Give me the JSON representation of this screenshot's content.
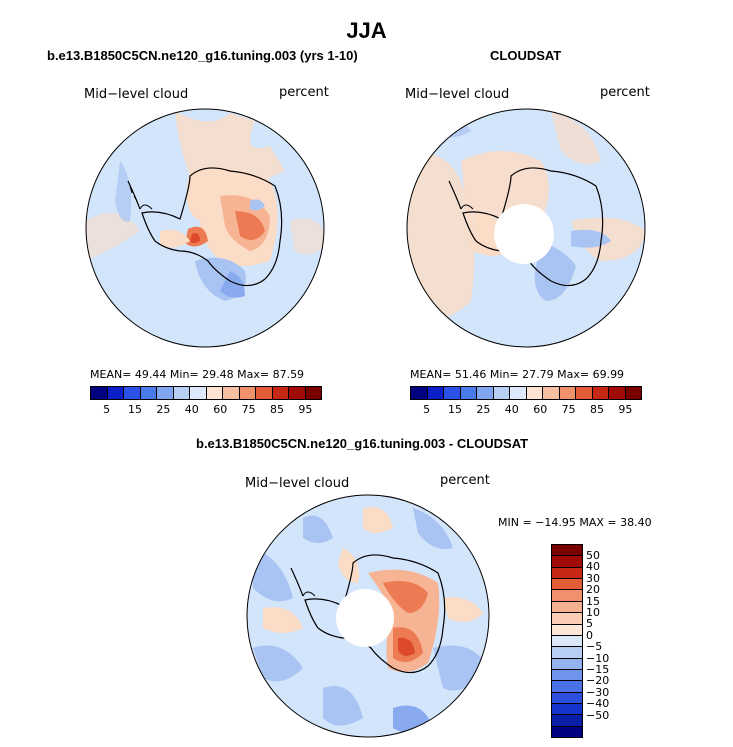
{
  "season": "JJA",
  "panels": [
    {
      "title": "b.e13.B1850C5CN.ne120_g16.tuning.003 (yrs 1-10)",
      "variable": "Mid−level cloud",
      "units": "percent",
      "stats": "MEAN=   49.44   Min=   29.48   Max=   87.59"
    },
    {
      "title": "CLOUDSAT",
      "variable": "Mid−level cloud",
      "units": "percent",
      "stats": "MEAN=   51.46   Min=   27.79   Max=   69.99"
    }
  ],
  "diff_panel": {
    "title": "b.e13.B1850C5CN.ne120_g16.tuning.003 - CLOUDSAT",
    "variable": "Mid−level cloud",
    "units": "percent",
    "stats": "MIN = −14.95 MAX =   38.40"
  },
  "scale": {
    "colors": [
      "#000080",
      "#0a1fc8",
      "#2a52e6",
      "#4a7bea",
      "#7fa6ef",
      "#b8cff5",
      "#dde9fb",
      "#fde3d1",
      "#f7bfa1",
      "#f1916b",
      "#e25c36",
      "#c72815",
      "#a10a07",
      "#7a0000"
    ],
    "labels": [
      "5",
      "15",
      "25",
      "40",
      "60",
      "75",
      "85",
      "95"
    ]
  },
  "diff_scale": {
    "colors": [
      "#7a0000",
      "#a10a07",
      "#c72815",
      "#e25c36",
      "#f1916b",
      "#f7b08f",
      "#fbcdb5",
      "#fde7d8",
      "#dde9fb",
      "#b8cff5",
      "#92b2f0",
      "#6f94ec",
      "#4a72e8",
      "#2c4fe0",
      "#1434cc",
      "#0a1fa8",
      "#000080"
    ],
    "labels": [
      "50",
      "40",
      "30",
      "20",
      "15",
      "10",
      "5",
      "0",
      "−5",
      "−10",
      "−15",
      "−20",
      "−30",
      "−40",
      "−50"
    ]
  },
  "map_colors": {
    "ocean": "#d3e5fb",
    "warm": "#fbdcc6",
    "warm2": "#f6b494",
    "hot": "#ec7a52",
    "hotter": "#dc4a2a",
    "cool": "#a9c4f2",
    "cool2": "#8aaaf0"
  }
}
